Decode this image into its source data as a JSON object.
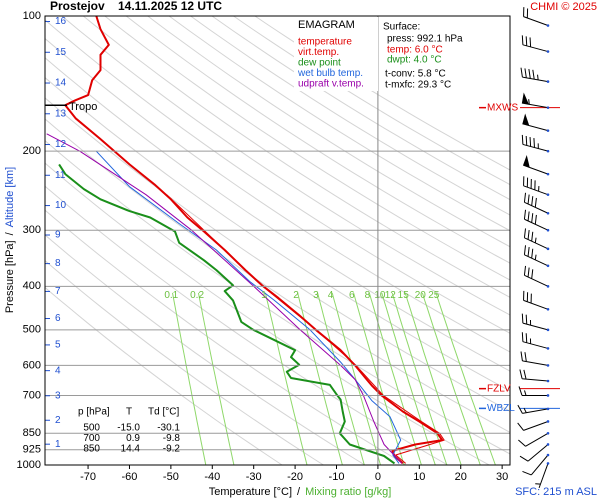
{
  "chart_data": {
    "type": "emagram",
    "title": "Prostejov",
    "subtitle": "14.11.2025 12 UTC",
    "credit": "CHMI © 2025",
    "station_height": "SFC: 215 m ASL",
    "y_label": "Pressure [hPa]",
    "y2_label": "Altitude [km]",
    "x_label": "Temperature [°C]",
    "x2_label": "Mixing ratio [g/kg]",
    "axis_separator": "/",
    "plim": [
      100,
      1000
    ],
    "pticks": [
      100,
      200,
      300,
      400,
      500,
      600,
      700,
      850,
      925,
      1000
    ],
    "xlim": [
      -80.4,
      31.9
    ],
    "xticks": [
      -70,
      -60,
      -50,
      -40,
      -30,
      -20,
      -10,
      0,
      10,
      20,
      30
    ],
    "altitude_ticks": [
      1,
      2,
      3,
      4,
      5,
      6,
      7,
      8,
      9,
      10,
      11,
      12,
      13,
      14,
      15,
      16
    ],
    "altitude_color": "#1f4fd0",
    "dry_adiabats": [
      250,
      260,
      270,
      280,
      290,
      300,
      310,
      320,
      330,
      340,
      350,
      360,
      370,
      380,
      390,
      400,
      410,
      420,
      430,
      440,
      450,
      460,
      470
    ],
    "mixing_ratio": [
      0.1,
      0.2,
      1,
      2,
      3,
      4,
      6,
      8,
      10,
      12,
      15,
      20,
      25
    ],
    "mixing_ratio_color": "#8fd86a",
    "legend_title": "EMAGRAM",
    "series": [
      {
        "name": "temperature",
        "color": "#e00000",
        "width": 2,
        "pressure": [
          992,
          955,
          930,
          900,
          880,
          850,
          800,
          760,
          700,
          665,
          640,
          600,
          555,
          500,
          464,
          425,
          398,
          368,
          332,
          302,
          281,
          256,
          237,
          214,
          188,
          169,
          158,
          154,
          150,
          139,
          132,
          122,
          116,
          107,
          100
        ],
        "values": [
          6.0,
          4.0,
          3.5,
          9.0,
          15.5,
          14.4,
          10.0,
          6.0,
          0.9,
          -1.5,
          -3.0,
          -5.5,
          -9.0,
          -15.0,
          -19.0,
          -24.0,
          -28.0,
          -32.0,
          -37.0,
          -42.0,
          -46.0,
          -50.0,
          -54.0,
          -60.0,
          -67.0,
          -73.0,
          -75.5,
          -73.0,
          -70.0,
          -69.0,
          -67.0,
          -67.0,
          -65.0,
          -67.0,
          -68.0
        ]
      },
      {
        "name": "virt.temp.",
        "color": "#e00000",
        "width": 1,
        "pressure": [
          992,
          950,
          880,
          850,
          800,
          700,
          600,
          500,
          400,
          300,
          250
        ],
        "values": [
          6.7,
          4.3,
          16.0,
          14.9,
          10.5,
          1.3,
          -5.3,
          -14.9,
          -27.8,
          -42.0,
          -51.0
        ]
      },
      {
        "name": "dew point",
        "color": "#1a8f1a",
        "width": 2,
        "pressure": [
          992,
          955,
          900,
          850,
          800,
          760,
          715,
          700,
          663,
          640,
          620,
          598,
          575,
          555,
          500,
          480,
          430,
          410,
          398,
          368,
          350,
          320,
          302,
          281,
          272,
          256,
          243,
          225,
          214
        ],
        "values": [
          4.0,
          1.5,
          -6.8,
          -9.2,
          -8.0,
          -8.5,
          -9.0,
          -9.8,
          -11.6,
          -21.0,
          -22.0,
          -19.0,
          -21.0,
          -20.0,
          -30.1,
          -33.0,
          -35.0,
          -37.0,
          -35.0,
          -39.0,
          -42.0,
          -48.0,
          -49.0,
          -55.0,
          -60.0,
          -67.0,
          -71.0,
          -75.5,
          -77.0
        ]
      },
      {
        "name": "wet bulb temp.",
        "color": "#2266dd",
        "width": 1,
        "pressure": [
          992,
          950,
          880,
          780,
          720,
          645,
          590,
          500,
          430,
          390,
          332,
          290,
          240,
          200
        ],
        "values": [
          5.1,
          3.6,
          5.5,
          2.9,
          -1.4,
          -5.5,
          -9.0,
          -16.4,
          -25.0,
          -31.0,
          -39.0,
          -48.0,
          -60.0,
          -68.0
        ]
      },
      {
        "name": "udpraft v.temp.",
        "color": "#9900aa",
        "width": 1,
        "pressure": [
          992,
          900,
          800,
          700,
          645,
          600,
          500,
          400,
          300,
          250,
          200,
          183
        ],
        "values": [
          5.8,
          1.5,
          -1.0,
          -3.5,
          -5.5,
          -9.0,
          -18.8,
          -30.0,
          -45.0,
          -56.0,
          -72.0,
          -80.0
        ]
      }
    ],
    "surface": {
      "title": "Surface:",
      "lines": [
        {
          "text": "press: 992.1 hPa",
          "color": "#000000"
        },
        {
          "text": "temp: 6.0 °C",
          "color": "#e00000"
        },
        {
          "text": "dwpt: 4.0 °C",
          "color": "#1a8f1a"
        },
        {
          "text": "t-conv: 5.8 °C",
          "color": "#000000"
        },
        {
          "text": "t-mxfc: 29.3 °C",
          "color": "#000000"
        }
      ]
    },
    "table": {
      "columns": [
        "p [hPa]",
        "T",
        "Td [°C]"
      ],
      "rows": [
        [
          "500",
          "-15.0",
          "-30.1"
        ],
        [
          "700",
          "0.9",
          "-9.8"
        ],
        [
          "850",
          "14.4",
          "-9.2"
        ]
      ]
    },
    "tropopause": {
      "label": "Tropo",
      "pressure": 158
    },
    "levels": [
      {
        "label": "MXWS",
        "pressure": 160,
        "color": "#e00000"
      },
      {
        "label": "FZLV",
        "pressure": 676,
        "color": "#e00000"
      },
      {
        "label": "WBZL",
        "pressure": 748,
        "color": "#2266dd"
      }
    ],
    "wind": {
      "pressure": [
        105,
        120,
        140,
        160,
        180,
        200,
        225,
        250,
        275,
        300,
        330,
        360,
        400,
        450,
        500,
        550,
        600,
        650,
        700,
        750,
        800,
        850,
        900,
        950,
        992
      ],
      "direction": [
        290,
        285,
        280,
        280,
        285,
        285,
        290,
        290,
        295,
        295,
        295,
        295,
        295,
        290,
        285,
        285,
        280,
        275,
        270,
        260,
        250,
        240,
        230,
        220,
        200
      ],
      "speed": [
        20,
        30,
        45,
        55,
        50,
        45,
        50,
        45,
        40,
        40,
        35,
        35,
        30,
        30,
        25,
        25,
        20,
        20,
        15,
        15,
        10,
        10,
        10,
        10,
        5
      ]
    }
  }
}
